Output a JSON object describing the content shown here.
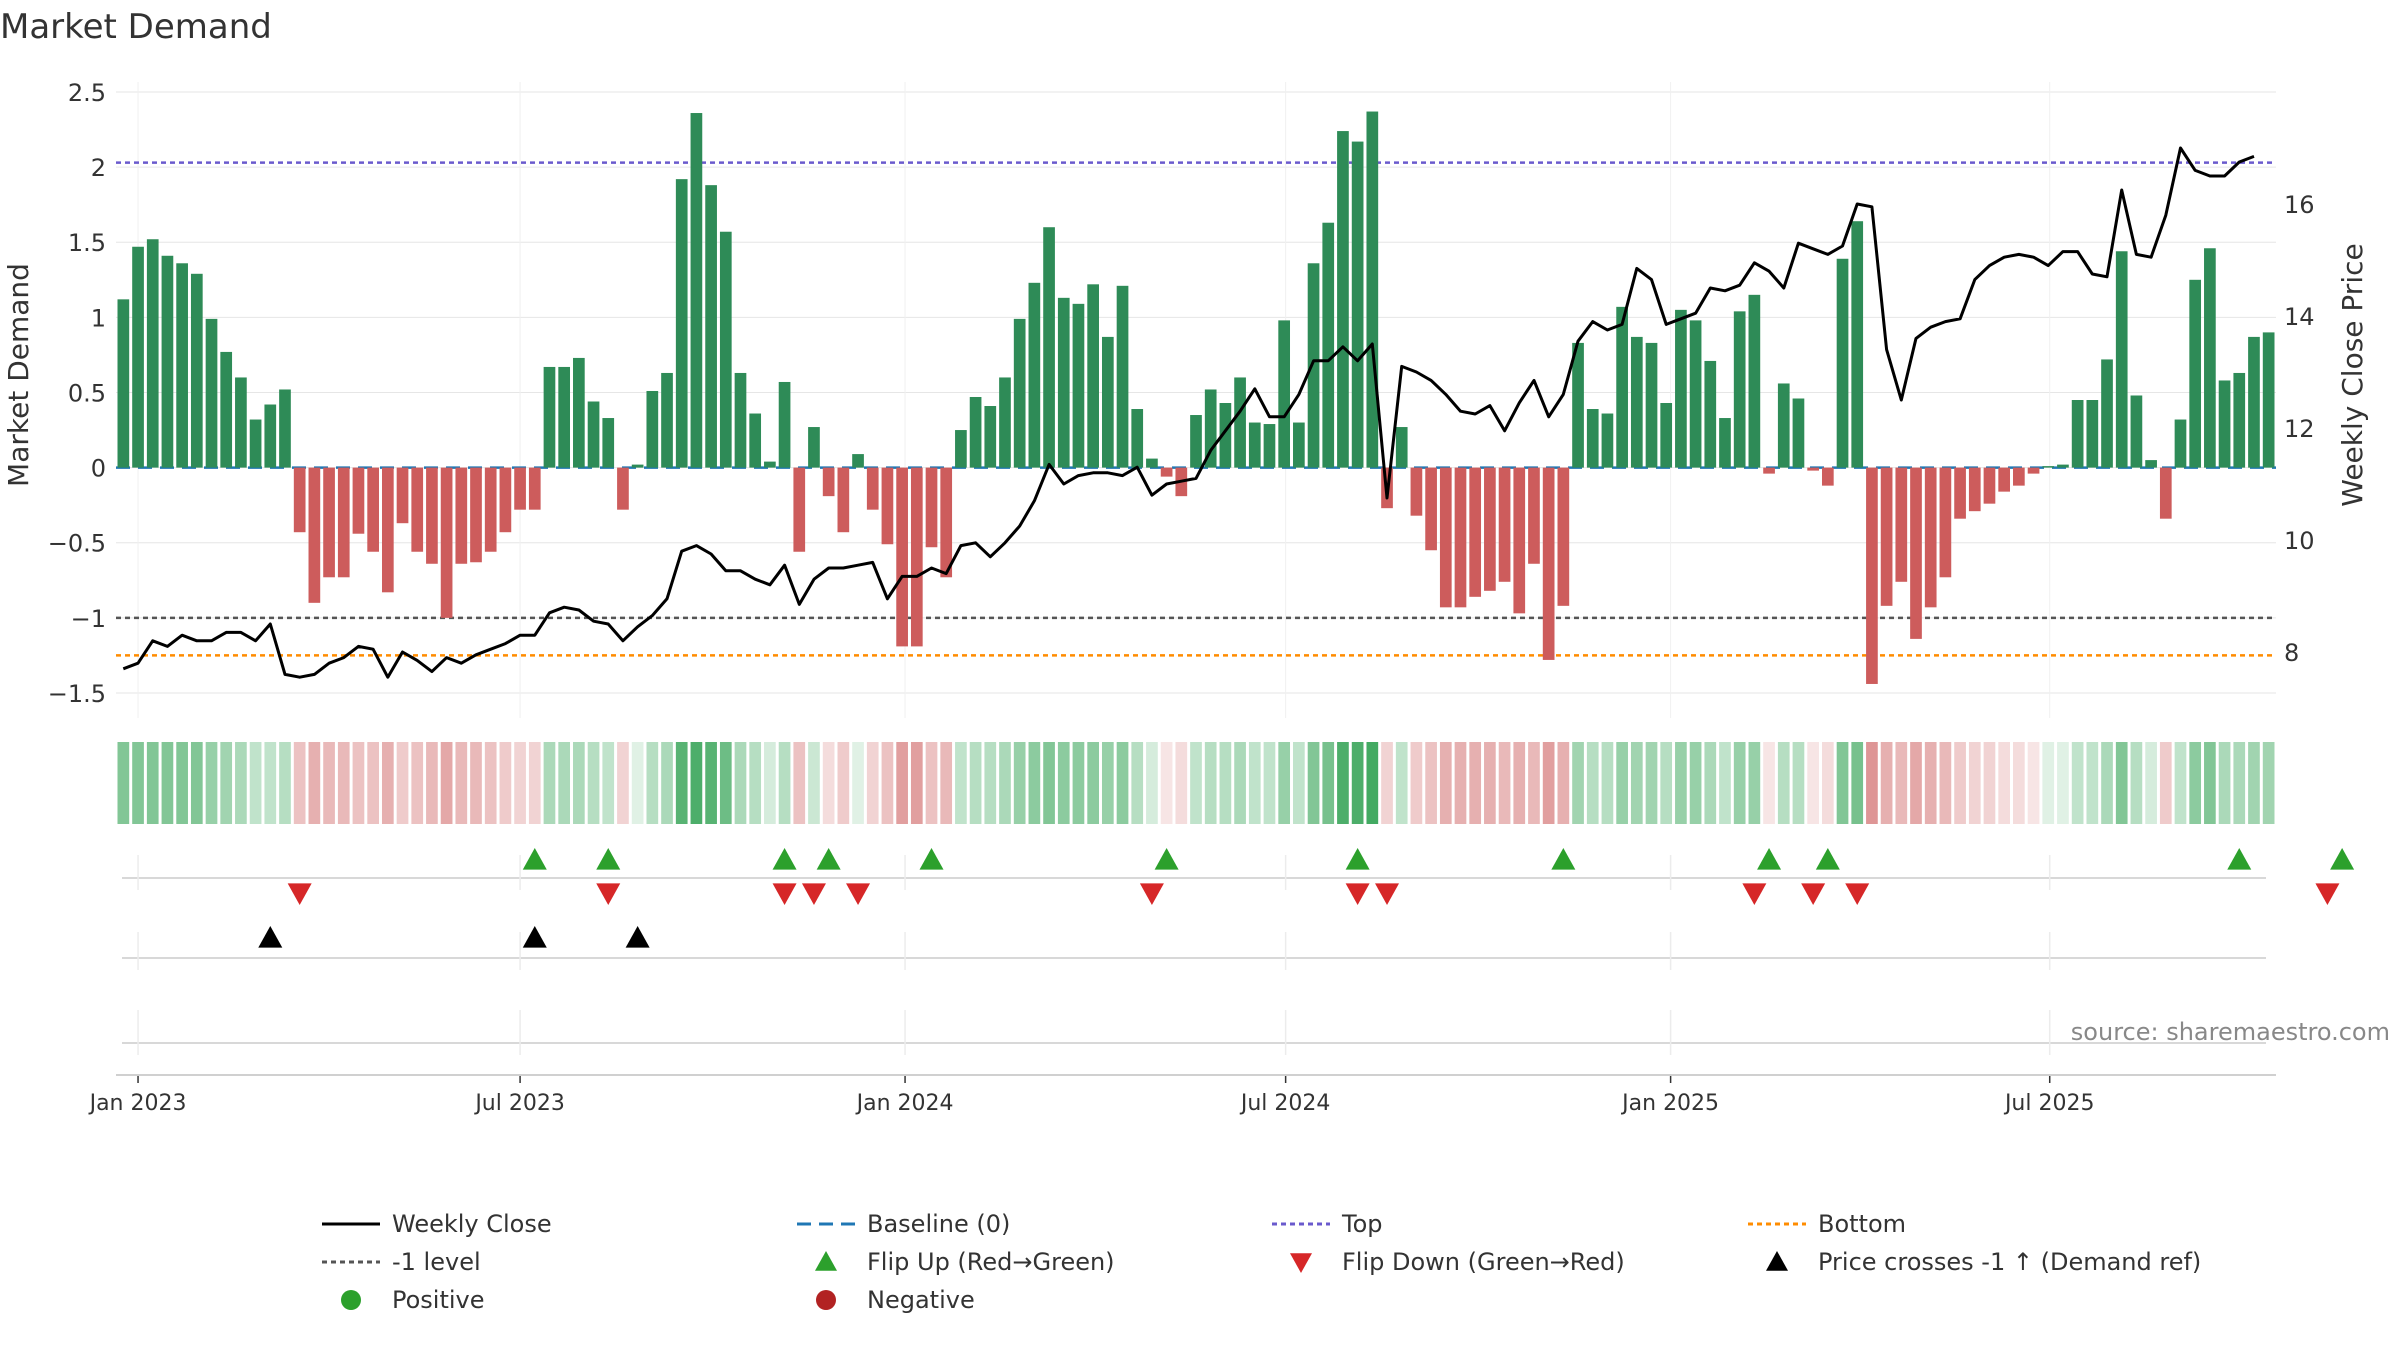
{
  "chart_data": {
    "type": "bar",
    "title": "Market Demand",
    "ylabel": "Market Demand",
    "y2label": "Weekly Close Price",
    "source": "source: sharemaestro.com",
    "ylim": [
      -1.6,
      2.5
    ],
    "y2lim": [
      7.0,
      18.0
    ],
    "y_ticks": [
      {
        "v": 2.5,
        "label": "2.5"
      },
      {
        "v": 2.0,
        "label": "2"
      },
      {
        "v": 1.5,
        "label": "1.5"
      },
      {
        "v": 1.0,
        "label": "1"
      },
      {
        "v": 0.5,
        "label": "0.5"
      },
      {
        "v": 0.0,
        "label": "0"
      },
      {
        "v": -0.5,
        "label": "−0.5"
      },
      {
        "v": -1.0,
        "label": "−1"
      },
      {
        "v": -1.5,
        "label": "−1.5"
      }
    ],
    "y2_ticks": [
      {
        "v": 16,
        "label": "16"
      },
      {
        "v": 14,
        "label": "14"
      },
      {
        "v": 12,
        "label": "12"
      },
      {
        "v": 10,
        "label": "10"
      },
      {
        "v": 8,
        "label": "8"
      }
    ],
    "x_ticks": [
      {
        "week": 1.5,
        "label": "Jan 2023"
      },
      {
        "week": 27.5,
        "label": "Jul 2023"
      },
      {
        "week": 53.7,
        "label": "Jan 2024"
      },
      {
        "week": 79.6,
        "label": "Jul 2024"
      },
      {
        "week": 105.8,
        "label": "Jan 2025"
      },
      {
        "week": 131.6,
        "label": "Jul 2025"
      }
    ],
    "reference_lines": {
      "top": 2.03,
      "minus_one": -1.0,
      "bottom": -1.25,
      "baseline": 0
    },
    "demand": [
      1.12,
      1.47,
      1.52,
      1.41,
      1.36,
      1.29,
      0.99,
      0.77,
      0.6,
      0.32,
      0.42,
      0.52,
      -0.43,
      -0.9,
      -0.73,
      -0.73,
      -0.44,
      -0.56,
      -0.83,
      -0.37,
      -0.56,
      -0.64,
      -1.0,
      -0.64,
      -0.63,
      -0.56,
      -0.43,
      -0.28,
      -0.28,
      0.67,
      0.67,
      0.73,
      0.44,
      0.33,
      -0.28,
      0.02,
      0.51,
      0.63,
      1.92,
      2.36,
      1.88,
      1.57,
      0.63,
      0.36,
      0.04,
      0.57,
      -0.56,
      0.27,
      -0.19,
      -0.43,
      0.09,
      -0.28,
      -0.51,
      -1.19,
      -1.19,
      -0.53,
      -0.73,
      0.25,
      0.47,
      0.41,
      0.6,
      0.99,
      1.23,
      1.6,
      1.13,
      1.09,
      1.22,
      0.87,
      1.21,
      0.39,
      0.06,
      -0.06,
      -0.19,
      0.35,
      0.52,
      0.43,
      0.6,
      0.3,
      0.29,
      0.98,
      0.3,
      1.36,
      1.63,
      2.24,
      2.17,
      2.37,
      -0.27,
      0.27,
      -0.32,
      -0.55,
      -0.93,
      -0.93,
      -0.86,
      -0.82,
      -0.76,
      -0.97,
      -0.64,
      -1.28,
      -0.92,
      0.83,
      0.39,
      0.36,
      1.07,
      0.87,
      0.83,
      0.43,
      1.05,
      0.98,
      0.71,
      0.33,
      1.04,
      1.15,
      -0.04,
      0.56,
      0.46,
      -0.02,
      -0.12,
      1.39,
      1.64,
      -1.44,
      -0.92,
      -0.76,
      -1.14,
      -0.93,
      -0.73,
      -0.34,
      -0.29,
      -0.24,
      -0.16,
      -0.12,
      -0.04,
      0.01,
      0.02,
      0.45,
      0.45,
      0.72,
      1.44,
      0.48,
      0.05,
      -0.34,
      0.32,
      1.25,
      1.46,
      0.58,
      0.63,
      0.87,
      0.9
    ],
    "weekly_close": [
      7.7,
      7.8,
      8.2,
      8.1,
      8.3,
      8.2,
      8.2,
      8.35,
      8.35,
      8.2,
      8.5,
      7.6,
      7.55,
      7.6,
      7.8,
      7.9,
      8.1,
      8.05,
      7.55,
      8.0,
      7.85,
      7.65,
      7.9,
      7.8,
      7.95,
      8.05,
      8.15,
      8.3,
      8.3,
      8.7,
      8.8,
      8.75,
      8.55,
      8.5,
      8.2,
      8.45,
      8.65,
      8.95,
      9.8,
      9.9,
      9.75,
      9.45,
      9.45,
      9.3,
      9.2,
      9.55,
      8.85,
      9.3,
      9.5,
      9.5,
      9.55,
      9.6,
      8.95,
      9.35,
      9.35,
      9.5,
      9.4,
      9.9,
      9.95,
      9.7,
      9.95,
      10.25,
      10.7,
      11.35,
      11.0,
      11.15,
      11.2,
      11.2,
      11.15,
      11.3,
      10.8,
      11.0,
      11.05,
      11.1,
      11.6,
      11.95,
      12.3,
      12.7,
      12.2,
      12.2,
      12.6,
      13.2,
      13.2,
      13.45,
      13.2,
      13.5,
      10.75,
      13.1,
      13.0,
      12.85,
      12.6,
      12.3,
      12.25,
      12.4,
      11.95,
      12.45,
      12.85,
      12.2,
      12.6,
      13.55,
      13.9,
      13.75,
      13.85,
      14.85,
      14.65,
      13.85,
      13.95,
      14.05,
      14.5,
      14.45,
      14.55,
      14.95,
      14.8,
      14.5,
      15.3,
      15.2,
      15.1,
      15.25,
      16.0,
      15.95,
      13.4,
      12.5,
      13.6,
      13.8,
      13.9,
      13.95,
      14.65,
      14.9,
      15.05,
      15.1,
      15.05,
      14.9,
      15.15,
      15.15,
      14.75,
      14.7,
      16.25,
      15.1,
      15.05,
      15.8,
      17.0,
      16.6,
      16.5,
      16.5,
      16.75,
      16.85
    ],
    "strip_intensity": [
      0.6,
      0.6,
      0.6,
      0.6,
      0.6,
      0.6,
      0.5,
      0.45,
      0.4,
      0.3,
      0.3,
      0.35,
      -0.35,
      -0.45,
      -0.4,
      -0.4,
      -0.35,
      -0.35,
      -0.45,
      -0.3,
      -0.35,
      -0.4,
      -0.5,
      -0.4,
      -0.4,
      -0.35,
      -0.3,
      -0.25,
      -0.25,
      0.4,
      0.4,
      0.4,
      0.35,
      0.3,
      -0.25,
      0.15,
      0.35,
      0.4,
      0.8,
      0.85,
      0.8,
      0.7,
      0.4,
      0.35,
      0.2,
      0.35,
      -0.35,
      0.25,
      -0.2,
      -0.3,
      0.15,
      -0.25,
      -0.35,
      -0.55,
      -0.55,
      -0.35,
      -0.4,
      0.3,
      0.35,
      0.35,
      0.4,
      0.5,
      0.55,
      0.6,
      0.55,
      0.55,
      0.55,
      0.5,
      0.55,
      0.35,
      0.2,
      -0.15,
      -0.2,
      0.3,
      0.35,
      0.35,
      0.4,
      0.3,
      0.3,
      0.5,
      0.3,
      0.6,
      0.65,
      0.85,
      0.85,
      0.9,
      -0.25,
      0.3,
      -0.3,
      -0.35,
      -0.45,
      -0.45,
      -0.45,
      -0.45,
      -0.4,
      -0.45,
      -0.4,
      -0.55,
      -0.45,
      0.45,
      0.35,
      0.35,
      0.5,
      0.45,
      0.45,
      0.35,
      0.5,
      0.5,
      0.4,
      0.3,
      0.5,
      0.5,
      -0.15,
      0.35,
      0.35,
      -0.15,
      -0.2,
      0.6,
      0.65,
      -0.6,
      -0.45,
      -0.4,
      -0.5,
      -0.45,
      -0.4,
      -0.3,
      -0.25,
      -0.25,
      -0.2,
      -0.2,
      -0.15,
      0.15,
      0.15,
      0.3,
      0.3,
      0.4,
      0.6,
      0.35,
      0.2,
      -0.3,
      0.3,
      0.55,
      0.6,
      0.4,
      0.4,
      0.45,
      0.45
    ],
    "flip_up_weeks": [
      28,
      33,
      45,
      48,
      55,
      71,
      84,
      98,
      112,
      116,
      144,
      151
    ],
    "flip_down_weeks": [
      12,
      33,
      45,
      47,
      50,
      70,
      84,
      86,
      111,
      115,
      118,
      150
    ],
    "price_cross_weeks": [
      10,
      28,
      35
    ],
    "colors": {
      "pos_bar": "#2e8b57",
      "neg_bar": "#cd5c5c",
      "close_line": "#000000",
      "baseline": "#1f77b4",
      "top": "#6a5acd",
      "minus_one": "#555555",
      "bottom": "#ff8c00",
      "flip_up": "#2ca02c",
      "flip_down": "#d62728",
      "cross": "#000000",
      "positive": "#2ca02c",
      "negative": "#b22222",
      "grid": "#e6e6e6"
    },
    "legend": [
      {
        "key": "close",
        "label": "Weekly Close"
      },
      {
        "key": "baseline",
        "label": "Baseline (0)"
      },
      {
        "key": "top",
        "label": "Top"
      },
      {
        "key": "bottom",
        "label": "Bottom"
      },
      {
        "key": "minus_one",
        "label": "-1 level"
      },
      {
        "key": "flip_up",
        "label": "Flip Up (Red→Green)"
      },
      {
        "key": "flip_down",
        "label": "Flip Down (Green→Red)"
      },
      {
        "key": "cross",
        "label": "Price crosses -1 ↑ (Demand ref)"
      },
      {
        "key": "positive",
        "label": "Positive"
      },
      {
        "key": "negative",
        "label": "Negative"
      }
    ]
  }
}
